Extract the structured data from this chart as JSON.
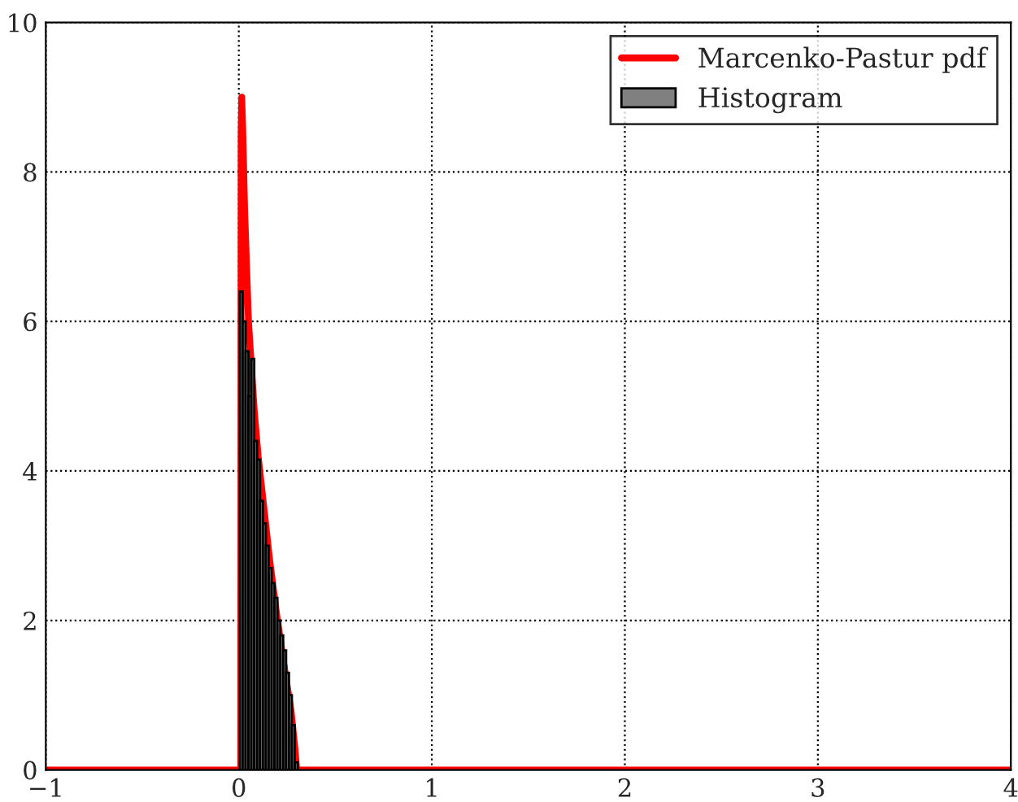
{
  "chart_data": {
    "type": "histogram",
    "legend": "top right",
    "grid": true,
    "xlim": [
      -1,
      4
    ],
    "ylim": [
      0,
      10
    ],
    "xticks": [
      {
        "value": -1,
        "label": "−1"
      },
      0,
      1,
      2,
      3,
      4
    ],
    "yticks": [
      0,
      2,
      4,
      6,
      8,
      10
    ],
    "bins": [
      0.005,
      0.02,
      0.035,
      0.05,
      0.065,
      0.08,
      0.095,
      0.11,
      0.125,
      0.14,
      0.155,
      0.17,
      0.185,
      0.2,
      0.215,
      0.23,
      0.245,
      0.26,
      0.275,
      0.29,
      0.305
    ],
    "series": [
      {
        "name": "Histogram",
        "color": "#808080",
        "values": [
          6.4,
          6.0,
          5.6,
          5.0,
          5.5,
          4.4,
          4.15,
          3.6,
          3.3,
          3.0,
          2.7,
          2.5,
          2.3,
          2.0,
          1.8,
          1.6,
          1.3,
          1.0,
          0.6,
          0.1
        ]
      },
      {
        "name": "Marcenko-Pastur pdf",
        "type": "line",
        "color": "#ff0000",
        "x": [
          -1,
          0.01,
          0.012,
          0.015,
          0.02,
          0.03,
          0.05,
          0.08,
          0.1,
          0.13,
          0.16,
          0.2,
          0.24,
          0.27,
          0.29,
          0.3,
          4
        ],
        "values": [
          0,
          0,
          8.5,
          9.0,
          8.6,
          7.5,
          6.0,
          4.8,
          4.2,
          3.5,
          2.8,
          2.0,
          1.3,
          0.8,
          0.3,
          0,
          0
        ]
      }
    ]
  }
}
